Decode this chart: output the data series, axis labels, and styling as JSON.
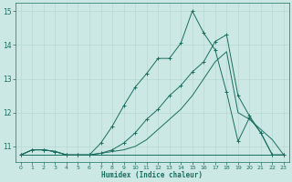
{
  "xlabel": "Humidex (Indice chaleur)",
  "xlim": [
    -0.5,
    23.5
  ],
  "ylim": [
    10.55,
    15.25
  ],
  "yticks": [
    11,
    12,
    13,
    14,
    15
  ],
  "xticks": [
    0,
    1,
    2,
    3,
    4,
    5,
    6,
    7,
    8,
    9,
    10,
    11,
    12,
    13,
    14,
    15,
    16,
    17,
    18,
    19,
    20,
    21,
    22,
    23
  ],
  "bg_color": "#cce8e4",
  "grid_color": "#b8d8d4",
  "line_color": "#1a6e60",
  "line1_x": [
    0,
    1,
    2,
    3,
    4,
    5,
    6,
    7,
    8,
    9,
    10,
    11,
    12,
    13,
    14,
    15,
    16,
    17,
    18,
    19,
    20,
    21,
    22,
    23
  ],
  "line1_y": [
    10.75,
    10.75,
    10.75,
    10.75,
    10.75,
    10.75,
    10.75,
    10.75,
    10.75,
    10.75,
    10.75,
    10.75,
    10.75,
    10.75,
    10.75,
    10.75,
    10.75,
    10.75,
    10.75,
    10.75,
    10.75,
    10.75,
    10.75,
    10.75
  ],
  "line2_x": [
    0,
    1,
    2,
    3,
    4,
    5,
    6,
    7,
    8,
    9,
    10,
    11,
    12,
    13,
    14,
    15,
    16,
    17,
    18,
    19,
    20,
    21,
    22,
    23
  ],
  "line2_y": [
    10.75,
    10.9,
    10.9,
    10.85,
    10.75,
    10.75,
    10.75,
    10.8,
    10.85,
    10.9,
    11.0,
    11.2,
    11.5,
    11.8,
    12.1,
    12.5,
    13.0,
    13.5,
    13.8,
    12.0,
    11.8,
    11.5,
    11.2,
    10.75
  ],
  "line3_x": [
    0,
    1,
    2,
    3,
    4,
    5,
    6,
    7,
    8,
    9,
    10,
    11,
    12,
    13,
    14,
    15,
    16,
    17,
    18,
    19,
    20,
    21,
    22,
    23
  ],
  "line3_y": [
    10.75,
    10.9,
    10.9,
    10.85,
    10.75,
    10.75,
    10.75,
    10.8,
    10.9,
    11.1,
    11.4,
    11.8,
    12.1,
    12.5,
    12.8,
    13.2,
    13.5,
    14.1,
    14.3,
    12.5,
    11.9,
    11.4,
    10.75,
    10.75
  ],
  "line4_x": [
    0,
    1,
    2,
    3,
    4,
    5,
    6,
    7,
    8,
    9,
    10,
    11,
    12,
    13,
    14,
    15,
    16,
    17,
    18,
    19,
    20,
    21,
    22,
    23
  ],
  "line4_y": [
    10.75,
    10.9,
    10.9,
    10.85,
    10.75,
    10.75,
    10.75,
    11.1,
    11.6,
    12.2,
    12.75,
    13.15,
    13.6,
    13.6,
    14.05,
    15.0,
    14.35,
    13.85,
    12.6,
    11.15,
    11.85,
    11.4,
    10.75,
    10.75
  ]
}
